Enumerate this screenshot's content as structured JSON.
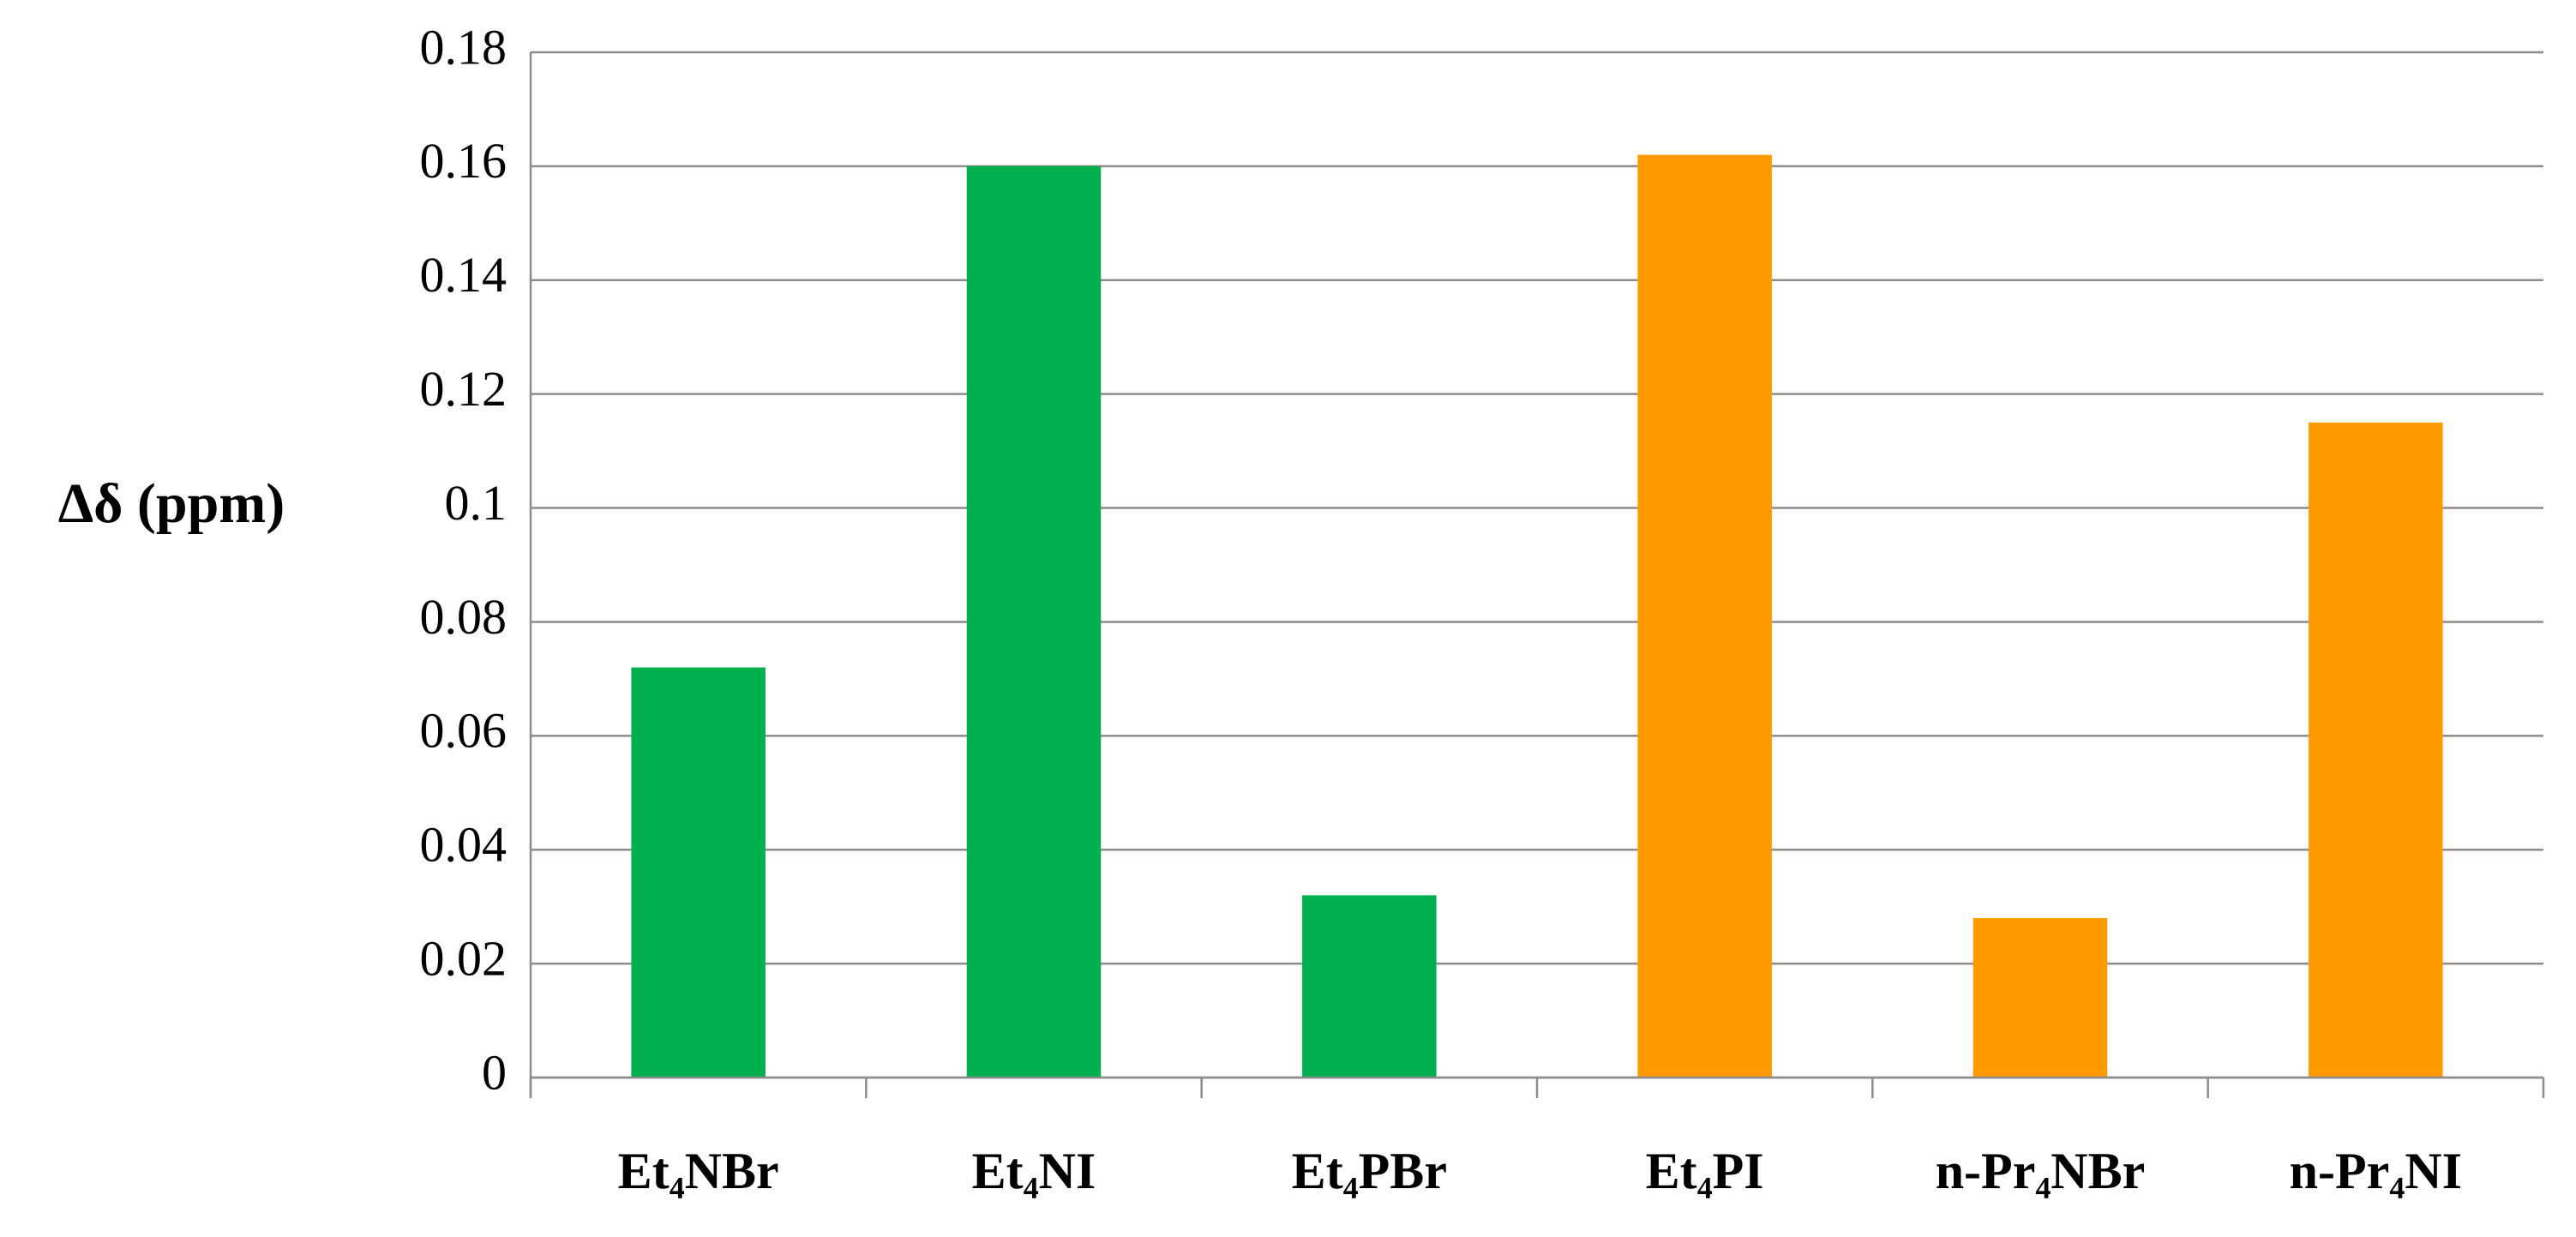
{
  "chart_data": {
    "type": "bar",
    "y_label": "Δδ (ppm)",
    "categories": [
      "Et₄NBr",
      "Et₄NI",
      "Et₄PBr",
      "Et₄PI",
      "n-Pr₄NBr",
      "n-Pr₄NI"
    ],
    "values": [
      0.072,
      0.16,
      0.032,
      0.162,
      0.028,
      0.115
    ],
    "colors": [
      "#00b04f",
      "#00b04f",
      "#00b04f",
      "#ff9a00",
      "#ff9a00",
      "#ff9a00"
    ],
    "ylim": [
      0,
      0.18
    ],
    "yticks": [
      0,
      0.02,
      0.04,
      0.06,
      0.08,
      0.1,
      0.12,
      0.14,
      0.16,
      0.18
    ],
    "grid": true
  }
}
